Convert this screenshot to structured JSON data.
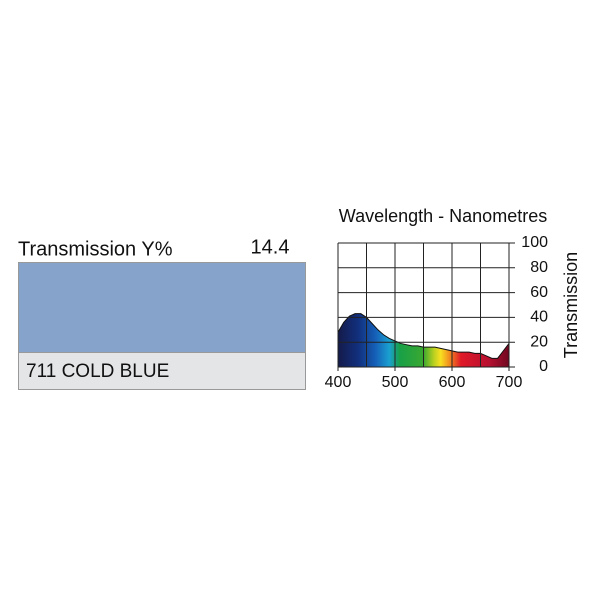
{
  "swatch": {
    "label": "Transmission Y%",
    "value": 14.4,
    "name": "711 COLD BLUE",
    "color": "#86a3cb"
  },
  "chart_data": {
    "type": "area",
    "title": "Wavelength - Nanometres",
    "y_label": "Transmission",
    "x": [
      400,
      410,
      420,
      430,
      440,
      450,
      460,
      470,
      480,
      490,
      500,
      510,
      520,
      530,
      540,
      550,
      560,
      570,
      580,
      590,
      600,
      610,
      620,
      630,
      640,
      650,
      660,
      670,
      680,
      690,
      700
    ],
    "values": [
      28,
      36,
      41,
      43,
      43,
      40,
      35,
      30,
      26,
      23,
      21,
      19,
      18,
      17,
      17,
      16,
      16,
      16,
      15,
      14,
      13,
      12,
      12,
      12,
      11,
      11,
      9,
      7,
      7,
      13,
      19
    ],
    "xlim": [
      400,
      700
    ],
    "xticks": [
      400,
      500,
      600,
      700
    ],
    "xgrid": [
      400,
      450,
      500,
      550,
      600,
      650,
      700
    ],
    "ylim": [
      0,
      100
    ],
    "yticks": [
      0,
      20,
      40,
      60,
      80,
      100
    ],
    "grid": true
  }
}
